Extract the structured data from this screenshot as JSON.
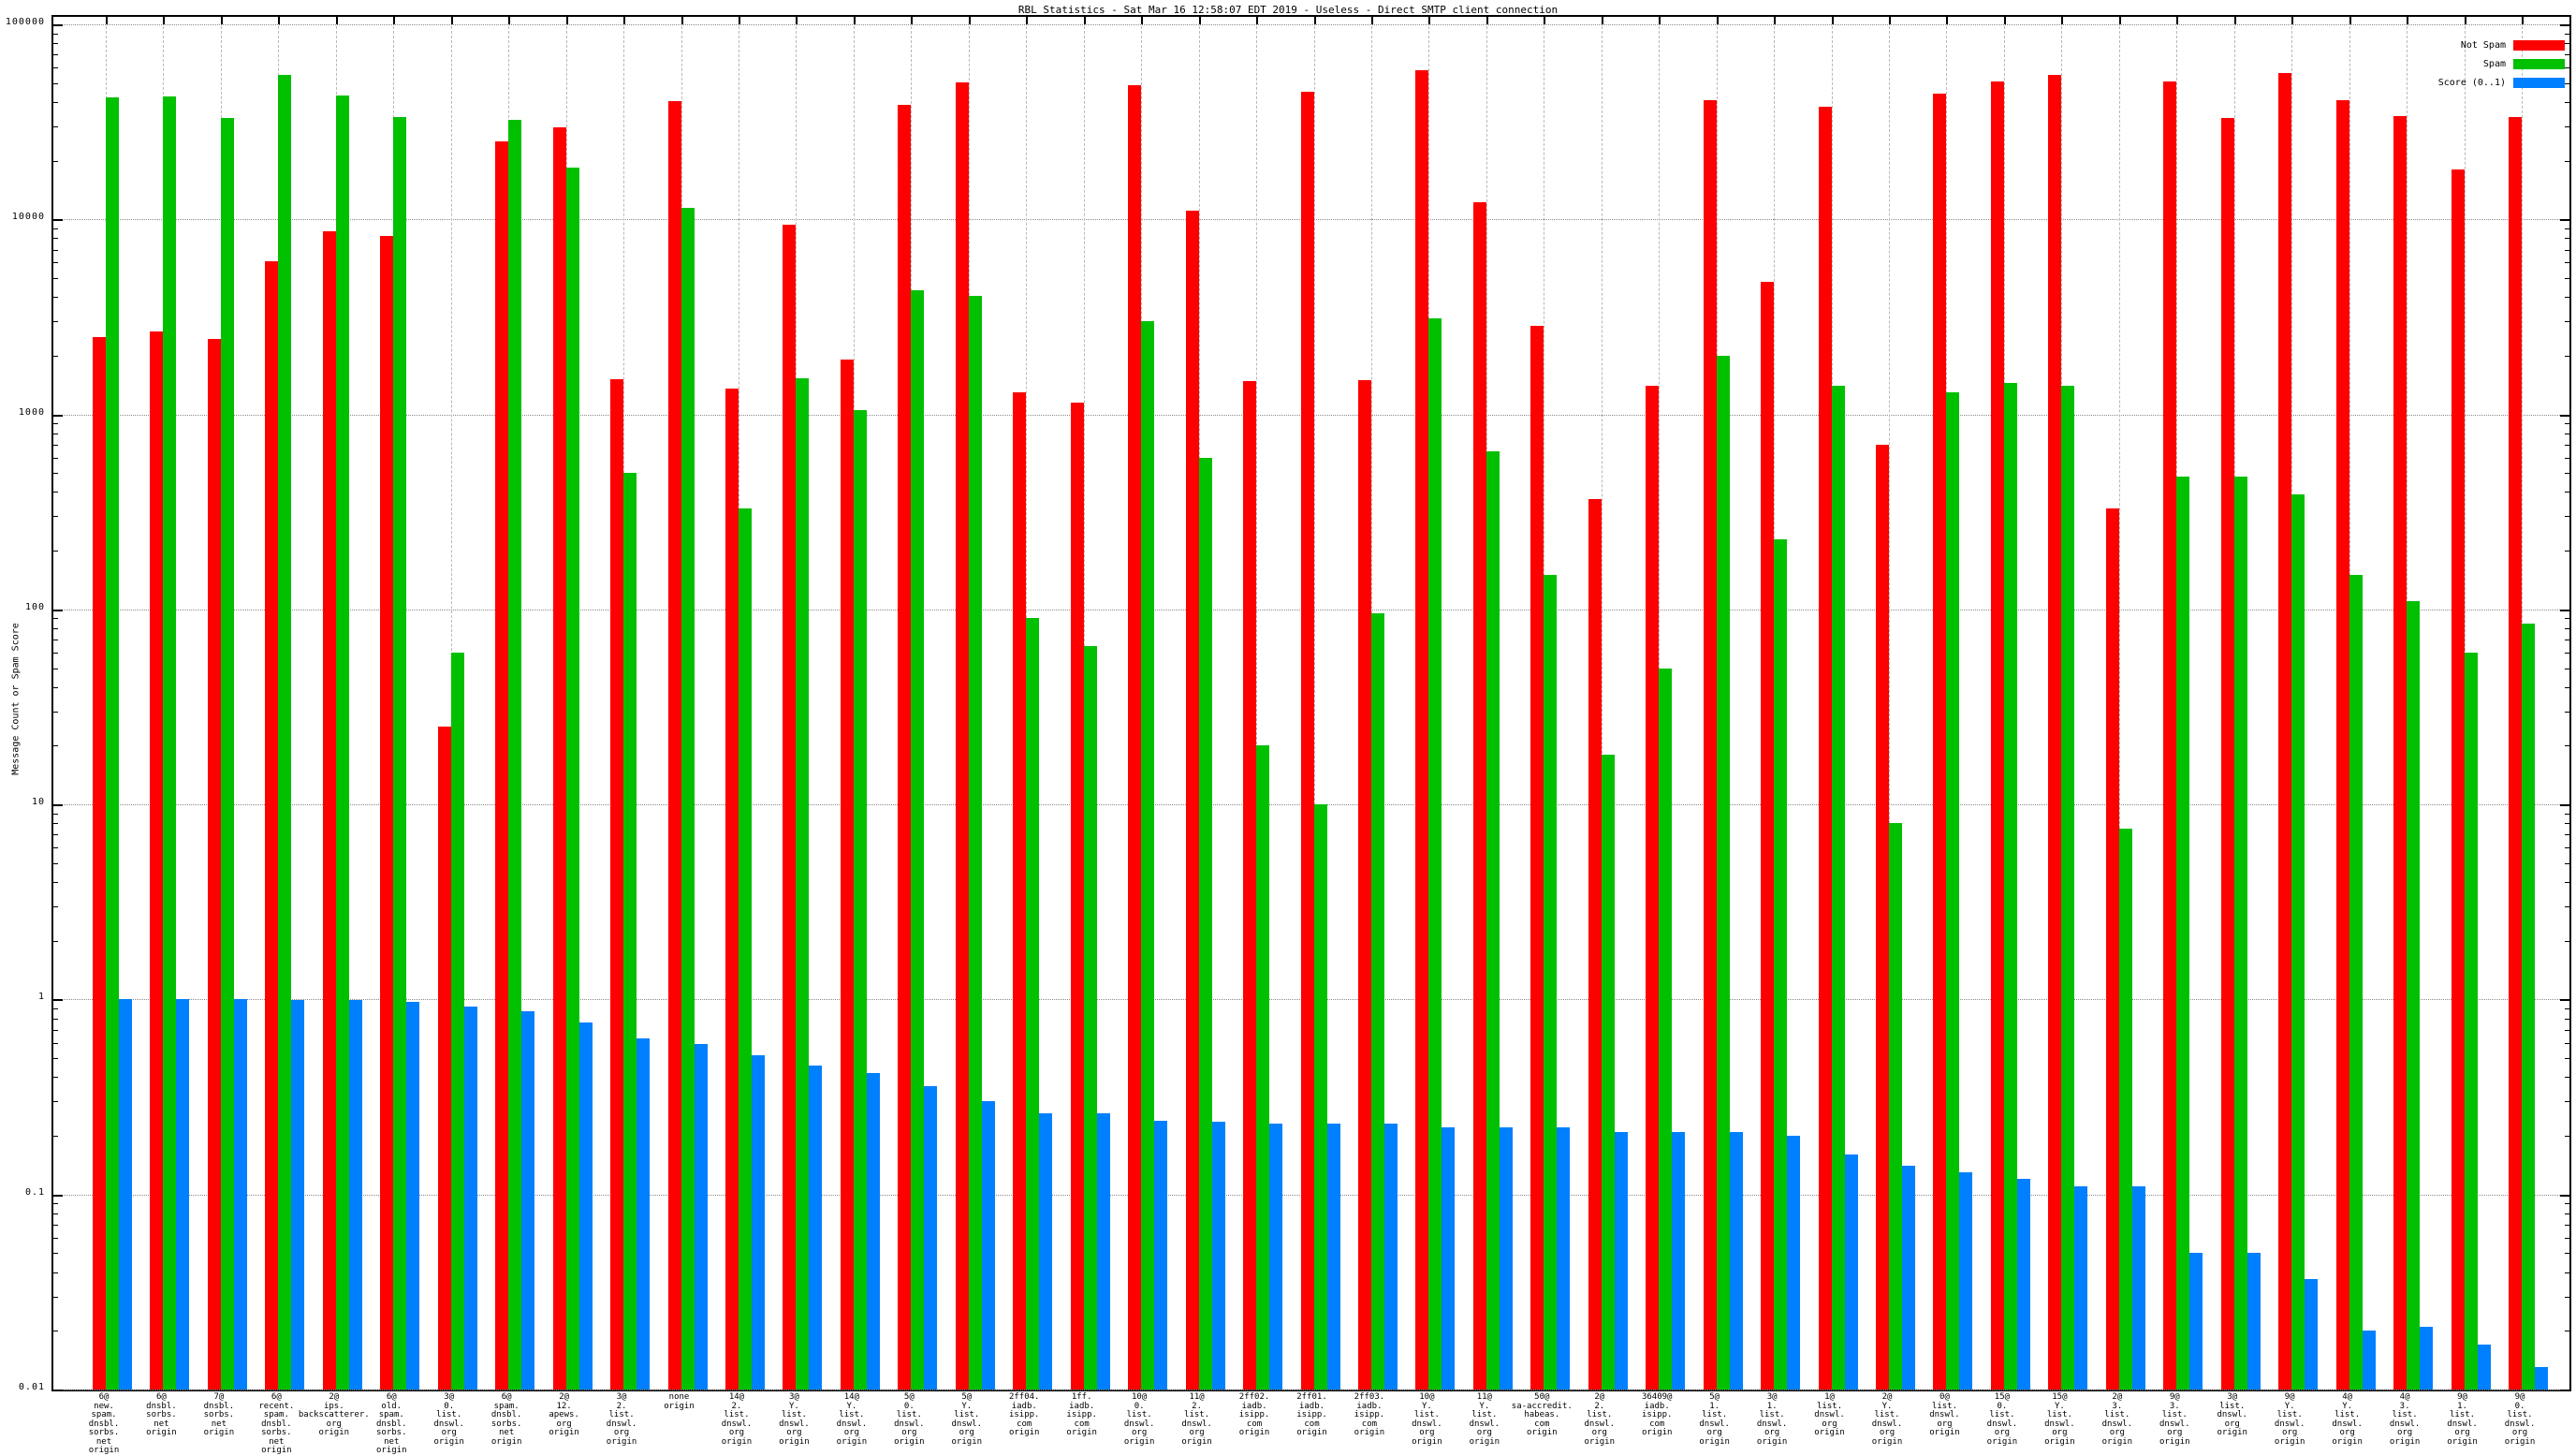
{
  "page": {
    "background": "#ffffff"
  },
  "chart_data": {
    "type": "bar",
    "title": "RBL Statistics - Sat Mar 16 12:58:07 EDT 2019 - Useless - Direct SMTP client connection",
    "ylabel": "Message Count or Spam Score",
    "xlabel": "",
    "yscale": "log",
    "ylim": [
      0.01,
      100000
    ],
    "ytick_labels": [
      "100000",
      "10000",
      "1000",
      "100",
      "10",
      "1",
      "0.1",
      "0.01"
    ],
    "grid": {
      "horizontal": "dotted",
      "vertical": "dashed"
    },
    "legend_position": "top-right-inside",
    "colors": {
      "not_spam": "#ff0000",
      "spam": "#00c000",
      "score": "#0080ff",
      "grid_h": "#8a8a8a",
      "grid_v": "#b8b8b8"
    },
    "series": [
      {
        "name": "Not Spam",
        "color": "#ff0000",
        "values": [
          2500,
          2650,
          2450,
          6100,
          8700,
          8200,
          25,
          25000,
          29500,
          1520,
          40600,
          1360,
          9400,
          1910,
          38500,
          50600,
          1300,
          1150,
          49000,
          11100,
          1490,
          45000,
          1500,
          58000,
          12300,
          2850,
          370,
          1400,
          41000,
          4800,
          38000,
          700,
          44000,
          51000,
          55000,
          330,
          51000,
          33000,
          56000,
          41000,
          34000,
          18000,
          33500
        ]
      },
      {
        "name": "Spam",
        "color": "#00c000",
        "values": [
          42000,
          42500,
          33000,
          55000,
          43000,
          33500,
          60,
          32500,
          18400,
          500,
          11500,
          330,
          1530,
          1050,
          4350,
          4050,
          90,
          65,
          3000,
          600,
          20,
          10,
          95,
          3100,
          650,
          150,
          18,
          50,
          2000,
          230,
          1400,
          8,
          1300,
          1450,
          1400,
          7.5,
          480,
          480,
          390,
          150,
          110,
          60,
          85
        ]
      },
      {
        "name": "Score (0..1)",
        "color": "#0080ff",
        "values": [
          1.0,
          1.0,
          1.0,
          0.99,
          0.99,
          0.97,
          0.92,
          0.87,
          0.76,
          0.63,
          0.59,
          0.52,
          0.46,
          0.42,
          0.36,
          0.3,
          0.26,
          0.26,
          0.24,
          0.235,
          0.23,
          0.23,
          0.23,
          0.22,
          0.22,
          0.22,
          0.21,
          0.21,
          0.21,
          0.2,
          0.16,
          0.14,
          0.13,
          0.12,
          0.11,
          0.11,
          0.05,
          0.05,
          0.037,
          0.02,
          0.021,
          0.017,
          0.013
        ]
      }
    ],
    "categories": [
      "6@\nnew.\nspam.\ndnsbl.\nsorbs.\nnet\norigin",
      "6@\ndnsbl.\nsorbs.\nnet\norigin",
      "7@\ndnsbl.\nsorbs.\nnet\norigin",
      "6@\nrecent.\nspam.\ndnsbl.\nsorbs.\nnet\norigin",
      "2@\nips.\nbackscatterer.\norg\norigin",
      "6@\nold.\nspam.\ndnsbl.\nsorbs.\nnet\norigin",
      "3@\n0.\nlist.\ndnswl.\norg\norigin",
      "6@\nspam.\ndnsbl.\nsorbs.\nnet\norigin",
      "2@\n12.\napews.\norg\norigin",
      "3@\n2.\nlist.\ndnswl.\norg\norigin",
      "none\norigin",
      "14@\n2.\nlist.\ndnswl.\norg\norigin",
      "3@\nY.\nlist.\ndnswl.\norg\norigin",
      "14@\nY.\nlist.\ndnswl.\norg\norigin",
      "5@\n0.\nlist.\ndnswl.\norg\norigin",
      "5@\nY.\nlist.\ndnswl.\norg\norigin",
      "2ff04.\niadb.\nisipp.\ncom\norigin",
      "1ff.\niadb.\nisipp.\ncom\norigin",
      "10@\n0.\nlist.\ndnswl.\norg\norigin",
      "11@\n2.\nlist.\ndnswl.\norg\norigin",
      "2ff02.\niadb.\nisipp.\ncom\norigin",
      "2ff01.\niadb.\nisipp.\ncom\norigin",
      "2ff03.\niadb.\nisipp.\ncom\norigin",
      "10@\nY.\nlist.\ndnswl.\norg\norigin",
      "11@\nY.\nlist.\ndnswl.\norg\norigin",
      "50@\nsa-accredit.\nhabeas.\ncom\norigin",
      "2@\n2.\nlist.\ndnswl.\norg\norigin",
      "36409@\niadb.\nisipp.\ncom\norigin",
      "5@\n1.\nlist.\ndnswl.\norg\norigin",
      "3@\n1.\nlist.\ndnswl.\norg\norigin",
      "1@\nlist.\ndnswl.\norg\norigin",
      "2@\nY.\nlist.\ndnswl.\norg\norigin",
      "0@\nlist.\ndnswl.\norg\norigin",
      "15@\n0.\nlist.\ndnswl.\norg\norigin",
      "15@\nY.\nlist.\ndnswl.\norg\norigin",
      "2@\n3.\nlist.\ndnswl.\norg\norigin",
      "9@\n3.\nlist.\ndnswl.\norg\norigin",
      "3@\nlist.\ndnswl.\norg\norigin",
      "9@\nY.\nlist.\ndnswl.\norg\norigin",
      "4@\nY.\nlist.\ndnswl.\norg\norigin",
      "4@\n3.\nlist.\ndnswl.\norg\norigin",
      "9@\n1.\nlist.\ndnswl.\norg\norigin",
      "9@\n0.\nlist.\ndnswl.\norg\norigin"
    ]
  }
}
